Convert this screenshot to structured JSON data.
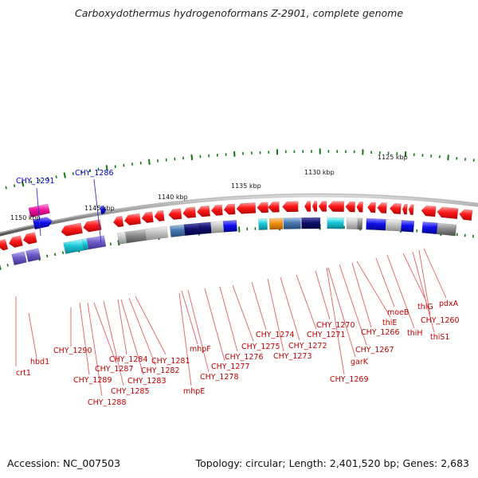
{
  "title": "Carboxydothermus hydrogenoformans Z-2901, complete genome",
  "footer": {
    "accession": "Accession: NC_007503",
    "topology": "Topology: circular; Length: 2,401,520 bp; Genes: 2,683"
  },
  "kbp_markers": [
    "1150 kbp",
    "1145 kbp",
    "1140 kbp",
    "1135 kbp",
    "1130 kbp",
    "1125 kbp"
  ],
  "blue_labels": [
    "CHY_1291",
    "CHY_1286"
  ],
  "gene_labels": [
    "crt1",
    "hbd1",
    "CHY_1290",
    "CHY_1289",
    "CHY_1288",
    "CHY_1287",
    "CHY_1285",
    "CHY_1284",
    "CHY_1283",
    "CHY_1282",
    "CHY_1281",
    "mhpE",
    "mhpF",
    "CHY_1278",
    "CHY_1277",
    "CHY_1276",
    "CHY_1275",
    "CHY_1274",
    "CHY_1273",
    "CHY_1272",
    "CHY_1271",
    "CHY_1270",
    "CHY_1269",
    "garK",
    "CHY_1267",
    "CHY_1266",
    "thiE",
    "moeB",
    "thiH",
    "thiG",
    "thiS1",
    "CHY_1260",
    "pdxA"
  ],
  "colors": {
    "gene_forward": "#ee1111",
    "gene_label": "#c00000",
    "backbone": "#808080",
    "tick": "#117711",
    "blue_label": "#0000cc"
  }
}
